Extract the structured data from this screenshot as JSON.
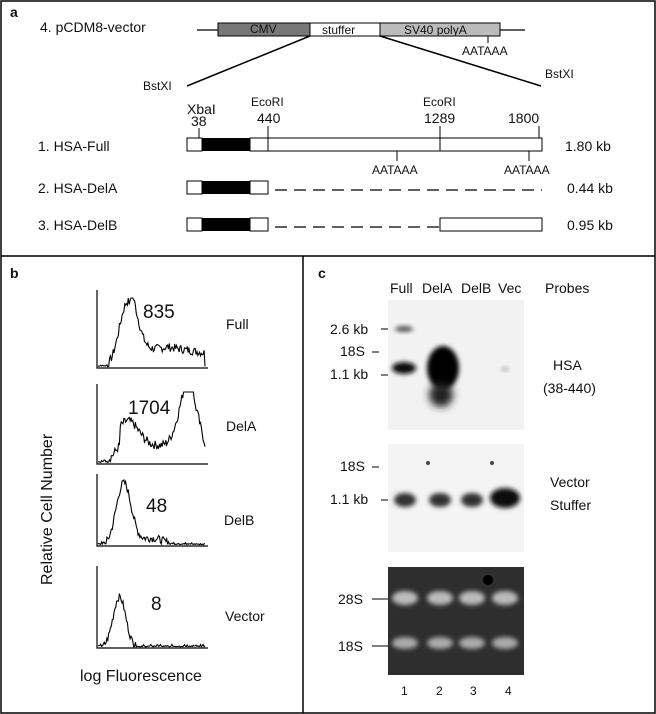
{
  "panel_a": {
    "label": "a",
    "vector_name": "4. pCDM8-vector",
    "cmv": "CMV",
    "stuffer": "stuffer",
    "sv40": "SV40 polyA",
    "aataaa": "AATAAA",
    "bstxi_left": "BstXI",
    "bstxi_right": "BstXI",
    "xbai": "XbaI",
    "ecori_1": "EcoRI",
    "ecori_2": "EcoRI",
    "pos_38": "38",
    "pos_440": "440",
    "pos_1289": "1289",
    "pos_1800": "1800",
    "constructs": [
      {
        "name": "1. HSA-Full",
        "size": "1.80 kb"
      },
      {
        "name": "2. HSA-DelA",
        "size": "0.44 kb"
      },
      {
        "name": "3. HSA-DelB",
        "size": "0.95 kb"
      }
    ],
    "aataaa_1": "AATAAA",
    "aataaa_2": "AATAAA"
  },
  "panel_b": {
    "label": "b",
    "ylabel": "Relative Cell Number",
    "xlabel": "log Fluorescence",
    "histograms": [
      {
        "name": "Full",
        "value": "835"
      },
      {
        "name": "DelA",
        "value": "1704"
      },
      {
        "name": "DelB",
        "value": "48"
      },
      {
        "name": "Vector",
        "value": "8"
      }
    ]
  },
  "panel_c": {
    "label": "c",
    "lanes": [
      "Full",
      "DelA",
      "DelB",
      "Vec"
    ],
    "probes_header": "Probes",
    "blot1_markers": [
      "2.6 kb",
      "18S",
      "1.1 kb"
    ],
    "blot1_probe": [
      "HSA",
      "(38-440)"
    ],
    "blot2_markers": [
      "18S",
      "1.1 kb"
    ],
    "blot2_probe": [
      "Vector",
      "Stuffer"
    ],
    "gel_markers": [
      "28S",
      "18S"
    ],
    "lane_numbers": [
      "1",
      "2",
      "3",
      "4"
    ]
  }
}
